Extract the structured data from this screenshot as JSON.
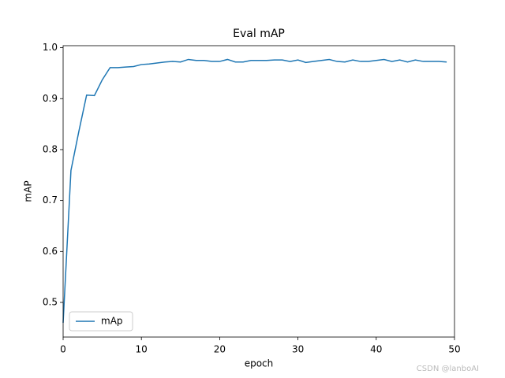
{
  "chart_data": {
    "type": "line",
    "title": "Eval mAP",
    "xlabel": "epoch",
    "ylabel": "mAP",
    "x": [
      0,
      1,
      2,
      3,
      4,
      5,
      6,
      7,
      8,
      9,
      10,
      11,
      12,
      13,
      14,
      15,
      16,
      17,
      18,
      19,
      20,
      21,
      22,
      23,
      24,
      25,
      26,
      27,
      28,
      29,
      30,
      31,
      32,
      33,
      34,
      35,
      36,
      37,
      38,
      39,
      40,
      41,
      42,
      43,
      44,
      45,
      46,
      47,
      48,
      49
    ],
    "series": [
      {
        "name": "mAp",
        "color": "#1f77b4",
        "values": [
          0.46,
          0.759,
          0.835,
          0.907,
          0.906,
          0.937,
          0.961,
          0.961,
          0.962,
          0.963,
          0.967,
          0.968,
          0.97,
          0.972,
          0.973,
          0.972,
          0.977,
          0.975,
          0.975,
          0.973,
          0.973,
          0.977,
          0.972,
          0.972,
          0.975,
          0.975,
          0.975,
          0.976,
          0.976,
          0.973,
          0.976,
          0.971,
          0.973,
          0.975,
          0.977,
          0.973,
          0.972,
          0.976,
          0.973,
          0.973,
          0.975,
          0.977,
          0.973,
          0.976,
          0.972,
          0.976,
          0.973,
          0.973,
          0.973,
          0.972
        ]
      }
    ],
    "xlim": [
      0,
      50
    ],
    "xticks": [
      0,
      10,
      20,
      30,
      40,
      50
    ],
    "ylim": [
      0.432,
      1.004
    ],
    "yticks": [
      0.5,
      0.6,
      0.7,
      0.8,
      0.9,
      {
        "value": 1,
        "label": "1.0"
      }
    ],
    "legend": "lower left",
    "grid": false
  },
  "watermark": "CSDN @lanboAI"
}
